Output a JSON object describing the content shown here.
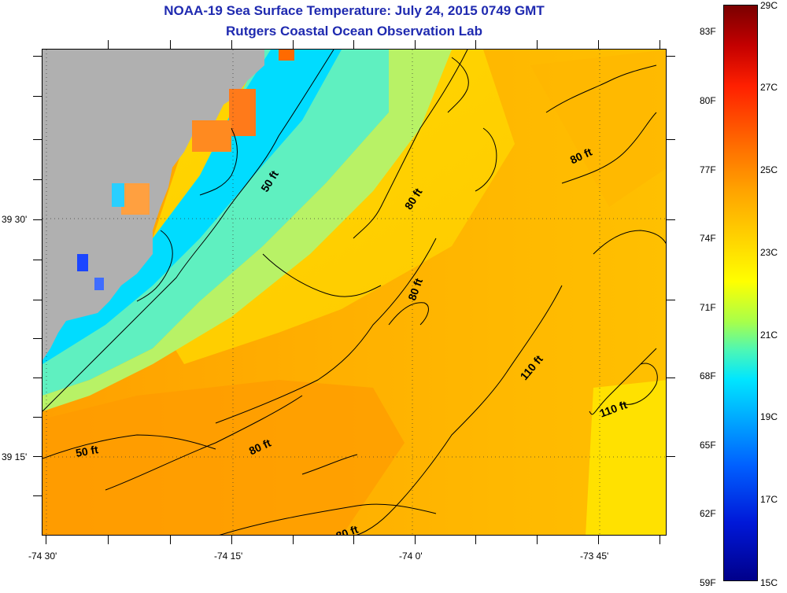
{
  "title": {
    "line1": "NOAA-19 Sea Surface Temperature:  July 24, 2015 0749 GMT",
    "line2": "Rutgers Coastal Ocean Observation Lab"
  },
  "map": {
    "lat_labels": [
      "39 30'",
      "39 15'"
    ],
    "lon_labels": [
      "-74 30'",
      "-74 15'",
      "-74 0'",
      "-73 45'"
    ],
    "depth_labels": [
      "50 ft",
      "50 ft",
      "80 ft",
      "80 ft",
      "80 ft",
      "80 ft",
      "80 ft",
      "110 ft",
      "110 ft"
    ],
    "land_color": "#b0b0b0",
    "contour_color": "#000000"
  },
  "colorbar": {
    "fahrenheit": [
      "83F",
      "80F",
      "77F",
      "74F",
      "71F",
      "68F",
      "65F",
      "62F",
      "59F"
    ],
    "celsius": [
      "29C",
      "27C",
      "25C",
      "23C",
      "21C",
      "19C",
      "17C",
      "15C"
    ],
    "colors": [
      "#7a0000",
      "#ff2000",
      "#ffa200",
      "#ffff00",
      "#00e6ff",
      "#0060ff",
      "#00008a"
    ]
  }
}
